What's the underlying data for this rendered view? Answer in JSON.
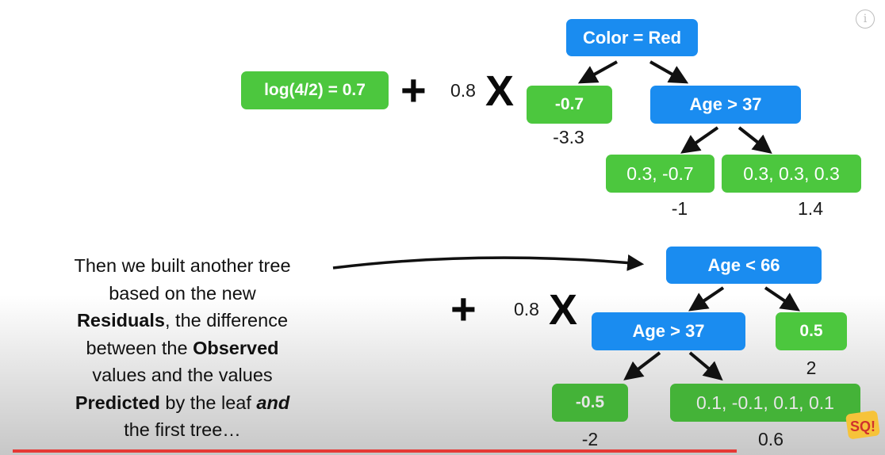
{
  "tree1": {
    "initial_prediction": "log(4/2) = 0.7",
    "plus": "+",
    "learning_rate": "0.8",
    "times": "X",
    "root": "Color = Red",
    "left_leaf": "-0.7",
    "left_leaf_output": "-3.3",
    "right_node": "Age > 37",
    "leaf_a": "0.3, -0.7",
    "leaf_a_output": "-1",
    "leaf_b": "0.3, 0.3, 0.3",
    "leaf_b_output": "1.4"
  },
  "tree2": {
    "plus": "+",
    "learning_rate": "0.8",
    "times": "X",
    "root": "Age < 66",
    "left_node": "Age > 37",
    "right_leaf": "0.5",
    "right_leaf_output": "2",
    "leaf_a": "-0.5",
    "leaf_a_output": "-2",
    "leaf_b": "0.1, -0.1, 0.1, 0.1",
    "leaf_b_output": "0.6"
  },
  "caption": {
    "l1": "Then we built another tree",
    "l2": "based on the new",
    "l3_bold": "Residuals",
    "l3_rest": ", the difference",
    "l4_start": "between the ",
    "l4_bold": "Observed",
    "l5": "values and the values",
    "l6_bold": "Predicted",
    "l6_mid": " by the leaf ",
    "l6_italic": "and",
    "l7": "the first tree…"
  },
  "logo_text": "SQ!",
  "colors": {
    "node_blue": "#1a8cf0",
    "leaf_green": "#4cc73e",
    "progress_red": "#e53935"
  },
  "icons": [
    "info-icon",
    "arrow-icon",
    "channel-logo"
  ],
  "video_progress_fraction": 0.83
}
